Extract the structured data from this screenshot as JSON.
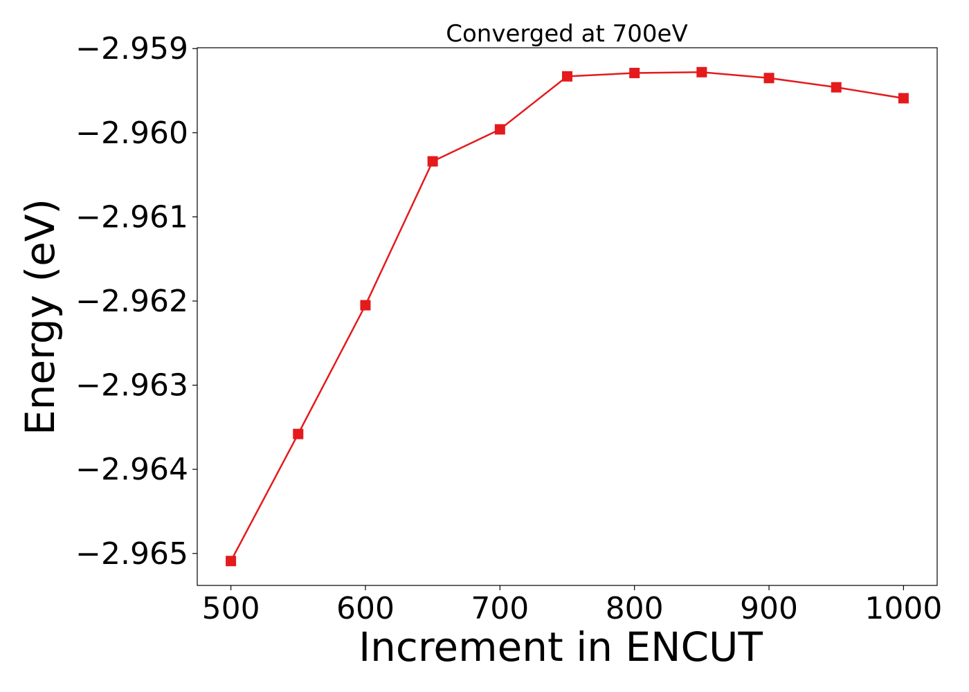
{
  "chart_data": {
    "type": "line",
    "title": "Converged at 700eV",
    "xlabel": "Increment in ENCUT",
    "ylabel": "Energy (eV)",
    "x": [
      500,
      550,
      600,
      650,
      700,
      750,
      800,
      850,
      900,
      950,
      1000
    ],
    "series": [
      {
        "values": [
          -2.96509,
          -2.96358,
          -2.96205,
          -2.96034,
          -2.95996,
          -2.95933,
          -2.95929,
          -2.95928,
          -2.95935,
          -2.95946,
          -2.95959
        ],
        "color": "#e41a1c",
        "marker": "square"
      }
    ],
    "xlim": [
      475,
      1025
    ],
    "ylim": [
      -2.96538,
      -2.95899
    ],
    "xticks": [
      500,
      600,
      700,
      800,
      900,
      1000
    ],
    "xtick_labels": [
      "500",
      "600",
      "700",
      "800",
      "900",
      "1000"
    ],
    "yticks": [
      -2.959,
      -2.96,
      -2.961,
      -2.962,
      -2.963,
      -2.964,
      -2.965
    ],
    "ytick_labels": [
      "−2.959",
      "−2.960",
      "−2.961",
      "−2.962",
      "−2.963",
      "−2.964",
      "−2.965"
    ],
    "grid": false,
    "legend": "none"
  }
}
